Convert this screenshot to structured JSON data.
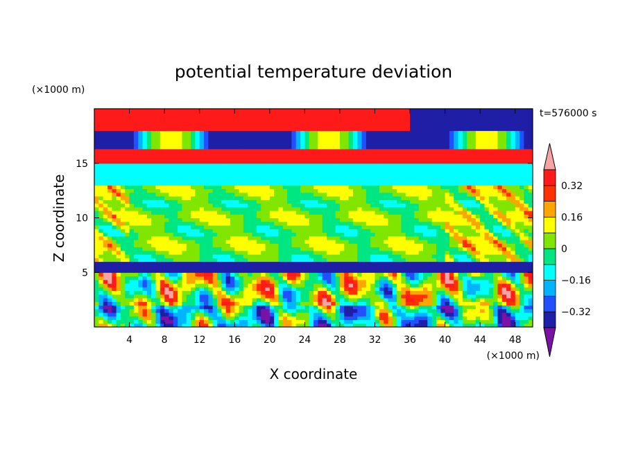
{
  "chart_data": {
    "type": "heatmap",
    "title": "potential temperature deviation",
    "xlabel": "X coordinate",
    "ylabel": "Z coordinate",
    "x_unit": "(×1000 m)",
    "y_unit": "(×1000 m)",
    "time_label": "t=576000 s",
    "xlim": [
      0,
      50
    ],
    "ylim": [
      0,
      20
    ],
    "x_ticks": [
      4,
      8,
      12,
      16,
      20,
      24,
      28,
      32,
      36,
      40,
      44,
      48
    ],
    "y_ticks": [
      5,
      10,
      15
    ],
    "colorbar": {
      "levels": [
        -0.4,
        -0.32,
        -0.24,
        -0.16,
        -0.08,
        0,
        0.08,
        0.16,
        0.24,
        0.32,
        0.4
      ],
      "labels": [
        "0.32",
        "0.16",
        "0",
        "−0.16",
        "−0.32"
      ],
      "colors": [
        "#7a12a6",
        "#1e1ea6",
        "#2050ff",
        "#00b4ff",
        "#00ffff",
        "#00e680",
        "#80e600",
        "#ffff00",
        "#ffa500",
        "#ff3000",
        "#ff1a1a",
        "#f5a3a3"
      ],
      "extend": "both"
    },
    "field": {
      "description_rows": "qualitative bands from bottom (z=0) to top (z=20)",
      "bands": [
        {
          "z": [
            0,
            2
          ],
          "value": -0.1
        },
        {
          "z": [
            2,
            5
          ],
          "value": 0.05
        },
        {
          "z": [
            5,
            6
          ],
          "value": -0.36
        },
        {
          "z": [
            6,
            13
          ],
          "value": 0.02
        },
        {
          "z": [
            13,
            15
          ],
          "value": -0.14
        },
        {
          "z": [
            15,
            16.5
          ],
          "value": 0.38
        },
        {
          "z": [
            16.5,
            18
          ],
          "value": -0.36
        },
        {
          "z": [
            18,
            20
          ],
          "value": 0.38
        }
      ]
    }
  }
}
